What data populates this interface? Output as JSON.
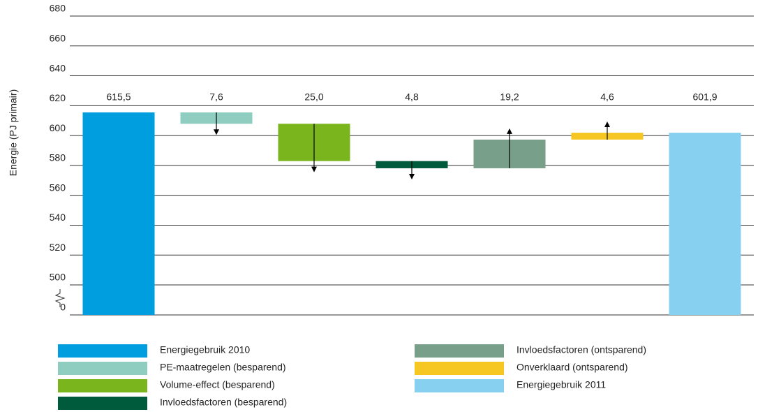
{
  "chart_data": {
    "type": "waterfall",
    "y_label": "Energie (PJ primair)",
    "categories": [
      "Energiegebruik 2010",
      "PE-maatregelen (besparend)",
      "Volume-effect (besparend)",
      "Invloedsfactoren (besparend)",
      "Invloedsfactoren (ontsparend)",
      "Onverklaard (ontsparend)",
      "Energiegebruik 2011"
    ],
    "values": [
      615.5,
      7.6,
      25.0,
      4.8,
      19.2,
      4.6,
      601.9
    ],
    "value_labels": [
      "615,5",
      "7,6",
      "25,0",
      "4,8",
      "19,2",
      "4,6",
      "601,9"
    ],
    "bar_kinds": [
      "total",
      "decrease",
      "decrease",
      "decrease",
      "increase",
      "increase",
      "total"
    ],
    "colors": [
      "#009ddf",
      "#8ecdc0",
      "#7ab51d",
      "#005a3c",
      "#789f8a",
      "#f6c723",
      "#87d0ef"
    ],
    "ylim": [
      0,
      680
    ],
    "axis_break": [
      0,
      500
    ],
    "yticks": [
      0,
      500,
      520,
      540,
      560,
      580,
      600,
      620,
      640,
      660,
      680
    ],
    "grid": true
  }
}
